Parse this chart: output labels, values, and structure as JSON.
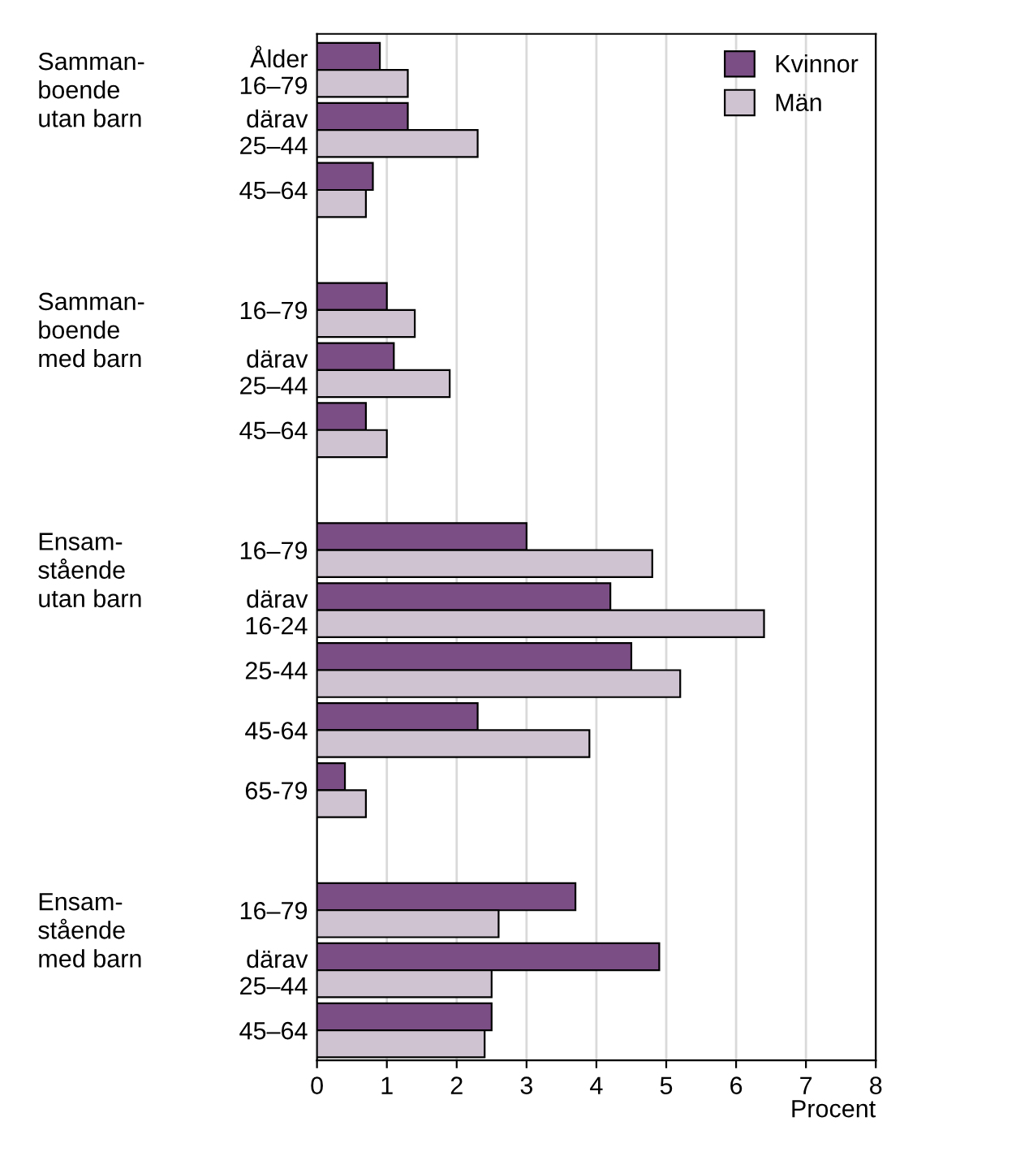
{
  "chart_data": {
    "type": "bar",
    "orientation": "horizontal",
    "categories": [
      "Ålder\n16–79",
      "därav\n25–44",
      "45–64",
      null,
      "16–79",
      "därav\n25–44",
      "45–64",
      null,
      "16–79",
      "därav\n16-24",
      "25-44",
      "45-64",
      "65-79",
      null,
      "16–79",
      "därav\n25–44",
      "45–64"
    ],
    "series": [
      {
        "name": "Kvinnor",
        "color": "#7b4f86",
        "values": [
          0.9,
          1.3,
          0.8,
          null,
          1.0,
          1.1,
          0.7,
          null,
          3.0,
          4.2,
          4.5,
          2.3,
          0.4,
          null,
          3.7,
          4.9,
          2.5
        ]
      },
      {
        "name": "Män",
        "color": "#cfc3d1",
        "values": [
          1.3,
          2.3,
          0.7,
          null,
          1.4,
          1.9,
          1.0,
          null,
          4.8,
          6.4,
          5.2,
          3.9,
          0.7,
          null,
          2.6,
          2.5,
          2.4
        ]
      }
    ],
    "annotations": [
      "Samman-\nboende\nutan barn",
      "Samman-\nboende\nmed barn",
      "Ensam-\nstående\nutan barn",
      "Ensam-\nstående\nmed barn"
    ],
    "xlabel": "Procent",
    "xlim": [
      0,
      8
    ],
    "xticks": [
      0,
      1,
      2,
      3,
      4,
      5,
      6,
      7,
      8
    ],
    "grid": "x",
    "legend": "top right"
  }
}
